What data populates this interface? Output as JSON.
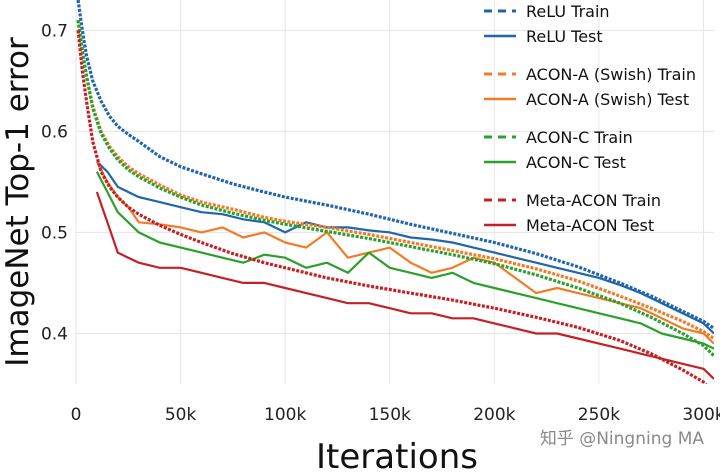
{
  "chart_data": {
    "type": "line",
    "title": "",
    "xlabel": "Iterations",
    "ylabel": "ImageNet Top-1 error",
    "xlim": [
      0,
      305000
    ],
    "ylim": [
      0.35,
      0.73
    ],
    "x_ticks": [
      0,
      50000,
      100000,
      150000,
      200000,
      250000,
      300000
    ],
    "x_tick_labels": [
      "0",
      "50k",
      "100k",
      "150k",
      "200k",
      "250k",
      "300k"
    ],
    "y_ticks": [
      0.4,
      0.5,
      0.6,
      0.7
    ],
    "y_tick_labels": [
      "0.4",
      "0.5",
      "0.6",
      "0.7"
    ],
    "grid": true,
    "legend_position": "top-right",
    "series": [
      {
        "name": "ReLU Train",
        "color": "#2166ac",
        "style": "dashed",
        "x": [
          1000,
          3000,
          5000,
          8000,
          12000,
          16000,
          20000,
          25000,
          30000,
          40000,
          50000,
          60000,
          75000,
          90000,
          100000,
          120000,
          140000,
          160000,
          180000,
          200000,
          220000,
          240000,
          260000,
          275000,
          290000,
          300000,
          305000
        ],
        "y": [
          0.73,
          0.7,
          0.675,
          0.65,
          0.63,
          0.615,
          0.605,
          0.597,
          0.59,
          0.575,
          0.565,
          0.558,
          0.548,
          0.54,
          0.535,
          0.527,
          0.518,
          0.508,
          0.499,
          0.49,
          0.479,
          0.466,
          0.45,
          0.437,
          0.422,
          0.412,
          0.405
        ]
      },
      {
        "name": "ReLU Test",
        "color": "#2166ac",
        "style": "solid",
        "x": [
          10000,
          15000,
          20000,
          25000,
          30000,
          40000,
          50000,
          60000,
          70000,
          80000,
          90000,
          100000,
          110000,
          120000,
          130000,
          140000,
          150000,
          160000,
          170000,
          180000,
          190000,
          200000,
          210000,
          220000,
          230000,
          240000,
          250000,
          260000,
          270000,
          280000,
          290000,
          300000,
          305000
        ],
        "y": [
          0.57,
          0.56,
          0.545,
          0.54,
          0.535,
          0.53,
          0.525,
          0.52,
          0.518,
          0.513,
          0.51,
          0.5,
          0.51,
          0.505,
          0.505,
          0.502,
          0.5,
          0.495,
          0.493,
          0.49,
          0.485,
          0.48,
          0.475,
          0.47,
          0.465,
          0.46,
          0.455,
          0.448,
          0.44,
          0.43,
          0.42,
          0.41,
          0.4
        ]
      },
      {
        "name": "ACON-A (Swish) Train",
        "color": "#f07c28",
        "style": "dashed",
        "x": [
          1000,
          3000,
          5000,
          8000,
          12000,
          16000,
          20000,
          25000,
          30000,
          40000,
          50000,
          60000,
          75000,
          90000,
          100000,
          120000,
          140000,
          160000,
          180000,
          200000,
          220000,
          240000,
          260000,
          275000,
          290000,
          300000,
          305000
        ],
        "y": [
          0.71,
          0.68,
          0.655,
          0.625,
          0.6,
          0.585,
          0.575,
          0.565,
          0.558,
          0.547,
          0.537,
          0.53,
          0.523,
          0.515,
          0.511,
          0.505,
          0.498,
          0.49,
          0.482,
          0.474,
          0.464,
          0.452,
          0.437,
          0.425,
          0.412,
          0.402,
          0.395
        ]
      },
      {
        "name": "ACON-A (Swish) Test",
        "color": "#f07c28",
        "style": "solid",
        "x": [
          10000,
          15000,
          20000,
          25000,
          30000,
          40000,
          50000,
          60000,
          70000,
          80000,
          90000,
          100000,
          110000,
          120000,
          130000,
          140000,
          150000,
          160000,
          170000,
          180000,
          190000,
          200000,
          210000,
          220000,
          230000,
          240000,
          250000,
          260000,
          270000,
          280000,
          290000,
          300000,
          305000
        ],
        "y": [
          0.57,
          0.55,
          0.535,
          0.525,
          0.51,
          0.508,
          0.505,
          0.5,
          0.505,
          0.495,
          0.5,
          0.49,
          0.485,
          0.5,
          0.475,
          0.48,
          0.485,
          0.47,
          0.46,
          0.465,
          0.475,
          0.47,
          0.455,
          0.44,
          0.445,
          0.44,
          0.435,
          0.43,
          0.425,
          0.415,
          0.405,
          0.4,
          0.39
        ]
      },
      {
        "name": "ACON-C Train",
        "color": "#2ca02c",
        "style": "dashed",
        "x": [
          1000,
          3000,
          5000,
          8000,
          12000,
          16000,
          20000,
          25000,
          30000,
          40000,
          50000,
          60000,
          75000,
          90000,
          100000,
          120000,
          140000,
          160000,
          180000,
          200000,
          220000,
          240000,
          260000,
          275000,
          290000,
          300000,
          305000
        ],
        "y": [
          0.71,
          0.68,
          0.655,
          0.623,
          0.598,
          0.583,
          0.572,
          0.562,
          0.555,
          0.544,
          0.535,
          0.527,
          0.519,
          0.512,
          0.508,
          0.501,
          0.494,
          0.486,
          0.478,
          0.469,
          0.458,
          0.445,
          0.43,
          0.416,
          0.4,
          0.388,
          0.378
        ]
      },
      {
        "name": "ACON-C Test",
        "color": "#2ca02c",
        "style": "solid",
        "x": [
          10000,
          15000,
          20000,
          25000,
          30000,
          40000,
          50000,
          60000,
          70000,
          80000,
          90000,
          100000,
          110000,
          120000,
          130000,
          140000,
          150000,
          160000,
          170000,
          180000,
          190000,
          200000,
          210000,
          220000,
          230000,
          240000,
          250000,
          260000,
          270000,
          280000,
          290000,
          300000,
          305000
        ],
        "y": [
          0.56,
          0.54,
          0.52,
          0.51,
          0.5,
          0.49,
          0.485,
          0.48,
          0.475,
          0.47,
          0.478,
          0.475,
          0.465,
          0.47,
          0.46,
          0.48,
          0.465,
          0.46,
          0.455,
          0.46,
          0.45,
          0.445,
          0.44,
          0.435,
          0.43,
          0.425,
          0.42,
          0.415,
          0.41,
          0.4,
          0.395,
          0.39,
          0.385
        ]
      },
      {
        "name": "Meta-ACON Train",
        "color": "#c42126",
        "style": "dashed",
        "x": [
          1000,
          3000,
          5000,
          8000,
          12000,
          16000,
          20000,
          25000,
          30000,
          40000,
          50000,
          60000,
          75000,
          90000,
          100000,
          120000,
          140000,
          160000,
          180000,
          200000,
          220000,
          240000,
          260000,
          275000,
          290000,
          300000,
          305000
        ],
        "y": [
          0.7,
          0.66,
          0.63,
          0.59,
          0.56,
          0.545,
          0.535,
          0.525,
          0.518,
          0.507,
          0.498,
          0.49,
          0.479,
          0.47,
          0.465,
          0.455,
          0.447,
          0.44,
          0.433,
          0.425,
          0.416,
          0.406,
          0.393,
          0.38,
          0.364,
          0.352,
          0.34
        ]
      },
      {
        "name": "Meta-ACON Test",
        "color": "#c42126",
        "style": "solid",
        "x": [
          10000,
          15000,
          20000,
          25000,
          30000,
          40000,
          50000,
          60000,
          70000,
          80000,
          90000,
          100000,
          110000,
          120000,
          130000,
          140000,
          150000,
          160000,
          170000,
          180000,
          190000,
          200000,
          210000,
          220000,
          230000,
          240000,
          250000,
          260000,
          270000,
          280000,
          290000,
          300000,
          305000
        ],
        "y": [
          0.54,
          0.51,
          0.48,
          0.475,
          0.47,
          0.465,
          0.465,
          0.46,
          0.455,
          0.45,
          0.45,
          0.445,
          0.44,
          0.435,
          0.43,
          0.43,
          0.425,
          0.42,
          0.42,
          0.415,
          0.415,
          0.41,
          0.405,
          0.4,
          0.4,
          0.395,
          0.39,
          0.385,
          0.38,
          0.375,
          0.37,
          0.365,
          0.355
        ]
      }
    ]
  },
  "watermark": "知乎 @Ningning MA"
}
